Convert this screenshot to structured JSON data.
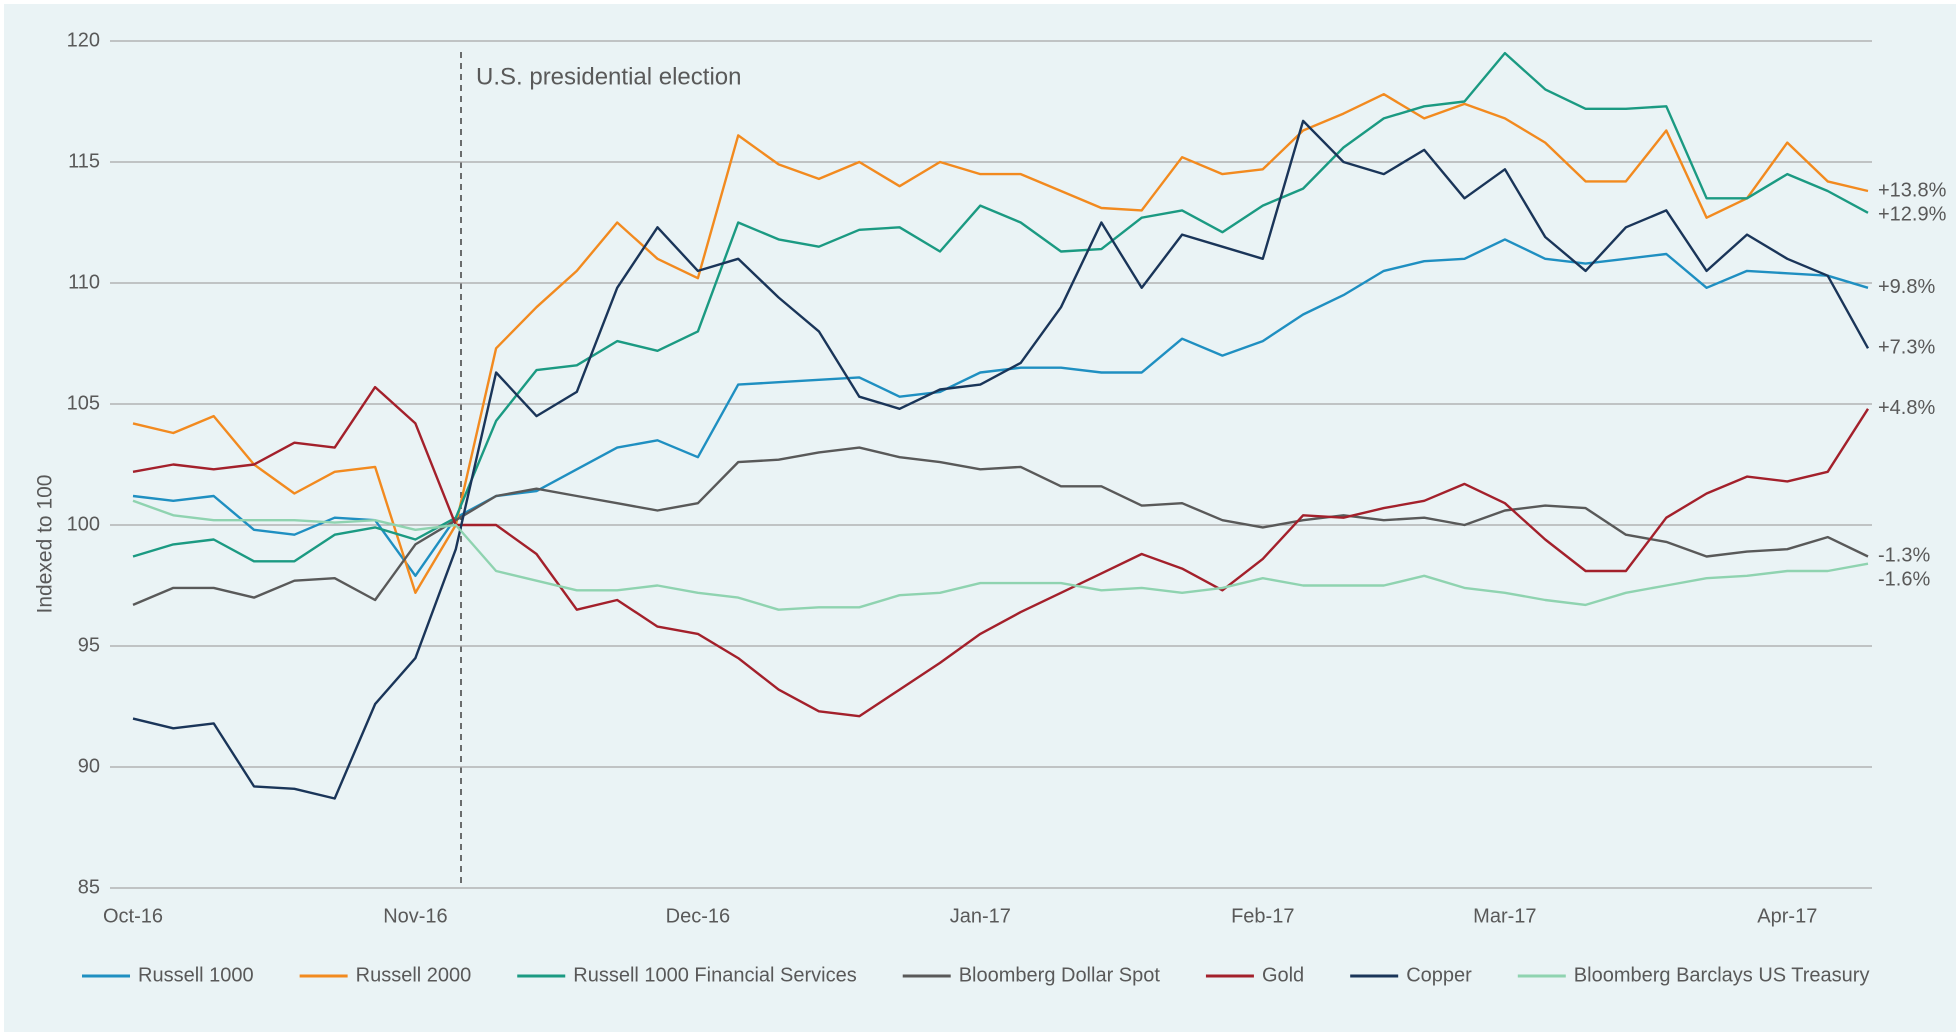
{
  "chart_data": {
    "type": "line",
    "y_label": "Indexed to 100",
    "annotation": "U.S. presidential election",
    "categories": [
      "Oct-16",
      null,
      null,
      null,
      null,
      null,
      null,
      "Nov-16",
      null,
      null,
      null,
      null,
      null,
      null,
      "Dec-16",
      null,
      null,
      null,
      null,
      null,
      null,
      "Jan-17",
      null,
      null,
      null,
      null,
      null,
      null,
      "Feb-17",
      null,
      null,
      null,
      null,
      null,
      "Mar-17",
      null,
      null,
      null,
      null,
      null,
      null,
      "Apr-17",
      null,
      null
    ],
    "ylim": [
      85,
      120
    ],
    "yticks": [
      85,
      90,
      95,
      100,
      105,
      110,
      115,
      120
    ],
    "grid": true,
    "legend": "bottom",
    "series": [
      {
        "name": "Russell 1000",
        "color": "#1f8fc1",
        "end_label": "+9.8%",
        "values": [
          101.2,
          101,
          101.2,
          99.8,
          99.6,
          100.3,
          100.2,
          97.9,
          100.3,
          101.2,
          101.4,
          102.3,
          103.2,
          103.5,
          102.8,
          105.8,
          105.9,
          106,
          106.1,
          105.3,
          105.5,
          106.3,
          106.5,
          106.5,
          106.3,
          106.3,
          107.7,
          107,
          107.6,
          108.7,
          109.5,
          110.5,
          110.9,
          111,
          111.8,
          111,
          110.8,
          111,
          111.2,
          109.8,
          110.5,
          110.4,
          110.3,
          109.8
        ]
      },
      {
        "name": "Russell 2000",
        "color": "#f28a1f",
        "end_label": "+13.8%",
        "values": [
          104.2,
          103.8,
          104.5,
          102.5,
          101.3,
          102.2,
          102.4,
          97.2,
          100,
          107.3,
          109,
          110.5,
          112.5,
          111,
          110.2,
          116.1,
          114.9,
          114.3,
          115,
          114,
          115,
          114.5,
          114.5,
          113.8,
          113.1,
          113,
          115.2,
          114.5,
          114.7,
          116.3,
          117,
          117.8,
          116.8,
          117.4,
          116.8,
          115.8,
          114.2,
          114.2,
          116.3,
          112.7,
          113.5,
          115.8,
          114.2,
          113.8
        ]
      },
      {
        "name": "Russell 1000 Financial Services",
        "color": "#1b9a82",
        "end_label": "+12.9%",
        "values": [
          98.7,
          99.2,
          99.4,
          98.5,
          98.5,
          99.6,
          99.9,
          99.4,
          100.3,
          104.3,
          106.4,
          106.6,
          107.6,
          107.2,
          108,
          112.5,
          111.8,
          111.5,
          112.2,
          112.3,
          111.3,
          113.2,
          112.5,
          111.3,
          111.4,
          112.7,
          113,
          112.1,
          113.2,
          113.9,
          115.6,
          116.8,
          117.3,
          117.5,
          119.5,
          118,
          117.2,
          117.2,
          117.3,
          113.5,
          113.5,
          114.5,
          113.8,
          112.9
        ]
      },
      {
        "name": "Bloomberg Dollar Spot",
        "color": "#595959",
        "end_label": "-1.3%",
        "values": [
          96.7,
          97.4,
          97.4,
          97,
          97.7,
          97.8,
          96.9,
          99.2,
          100.2,
          101.2,
          101.5,
          101.2,
          100.9,
          100.6,
          100.9,
          102.6,
          102.7,
          103,
          103.2,
          102.8,
          102.6,
          102.3,
          102.4,
          101.6,
          101.6,
          100.8,
          100.9,
          100.2,
          99.9,
          100.2,
          100.4,
          100.2,
          100.3,
          100,
          100.6,
          100.8,
          100.7,
          99.6,
          99.3,
          98.7,
          98.9,
          99,
          99.5,
          98.7
        ]
      },
      {
        "name": "Gold",
        "color": "#a3202b",
        "end_label": "+4.8%",
        "values": [
          102.2,
          102.5,
          102.3,
          102.5,
          103.4,
          103.2,
          105.7,
          104.2,
          100,
          100,
          98.8,
          96.5,
          96.9,
          95.8,
          95.5,
          94.5,
          93.2,
          92.3,
          92.1,
          93.2,
          94.3,
          95.5,
          96.4,
          97.2,
          98,
          98.8,
          98.2,
          97.3,
          98.6,
          100.4,
          100.3,
          100.7,
          101,
          101.7,
          100.9,
          99.4,
          98.1,
          98.1,
          100.3,
          101.3,
          102,
          101.8,
          102.2,
          104.8
        ]
      },
      {
        "name": "Copper",
        "color": "#1a3559",
        "end_label": "+7.3%",
        "values": [
          92,
          91.6,
          91.8,
          89.2,
          89.1,
          88.7,
          92.6,
          94.5,
          99,
          106.3,
          104.5,
          105.5,
          109.8,
          112.3,
          110.5,
          111,
          109.4,
          108,
          105.3,
          104.8,
          105.6,
          105.8,
          106.7,
          109,
          112.5,
          109.8,
          112,
          111.5,
          111,
          116.7,
          115,
          114.5,
          115.5,
          113.5,
          114.7,
          111.9,
          110.5,
          112.3,
          113,
          110.5,
          112,
          111,
          110.3,
          107.3
        ]
      },
      {
        "name": "Bloomberg Barclays US Treasury",
        "color": "#8fd3b0",
        "end_label": "-1.6%",
        "values": [
          101,
          100.4,
          100.2,
          100.2,
          100.2,
          100.1,
          100.2,
          99.8,
          100,
          98.1,
          97.7,
          97.3,
          97.3,
          97.5,
          97.2,
          97,
          96.5,
          96.6,
          96.6,
          97.1,
          97.2,
          97.6,
          97.6,
          97.6,
          97.3,
          97.4,
          97.2,
          97.4,
          97.8,
          97.5,
          97.5,
          97.5,
          97.9,
          97.4,
          97.2,
          96.9,
          96.7,
          97.2,
          97.5,
          97.8,
          97.9,
          98.1,
          98.1,
          98.4
        ]
      }
    ]
  }
}
